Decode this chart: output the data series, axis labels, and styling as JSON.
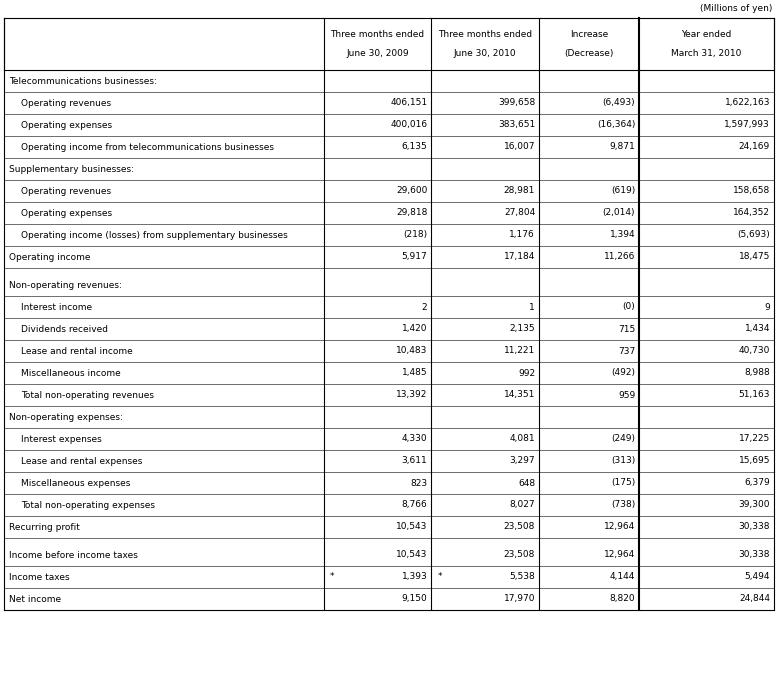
{
  "title_right": "(Millions of yen)",
  "col_headers": [
    "Three months ended\nJune 30, 2009",
    "Three months ended\nJune 30, 2010",
    "Increase\n(Decrease)",
    "Year ended\nMarch 31, 2010"
  ],
  "rows": [
    {
      "label": "Telecommunications businesses:",
      "indent": 0,
      "values": [
        "",
        "",
        "",
        ""
      ],
      "section_header": true
    },
    {
      "label": "Operating revenues",
      "indent": 1,
      "values": [
        "406,151",
        "399,658",
        "(6,493)",
        "1,622,163"
      ]
    },
    {
      "label": "Operating expenses",
      "indent": 1,
      "values": [
        "400,016",
        "383,651",
        "(16,364)",
        "1,597,993"
      ]
    },
    {
      "label": "Operating income from telecommunications businesses",
      "indent": 1,
      "values": [
        "6,135",
        "16,007",
        "9,871",
        "24,169"
      ]
    },
    {
      "label": "Supplementary businesses:",
      "indent": 0,
      "values": [
        "",
        "",
        "",
        ""
      ],
      "section_header": true
    },
    {
      "label": "Operating revenues",
      "indent": 1,
      "values": [
        "29,600",
        "28,981",
        "(619)",
        "158,658"
      ]
    },
    {
      "label": "Operating expenses",
      "indent": 1,
      "values": [
        "29,818",
        "27,804",
        "(2,014)",
        "164,352"
      ]
    },
    {
      "label": "Operating income (losses) from supplementary businesses",
      "indent": 1,
      "values": [
        "(218)",
        "1,176",
        "1,394",
        "(5,693)"
      ]
    },
    {
      "label": "Operating income",
      "indent": 0,
      "values": [
        "5,917",
        "17,184",
        "11,266",
        "18,475"
      ]
    },
    {
      "label": "",
      "indent": 0,
      "values": [
        "",
        "",
        "",
        ""
      ],
      "spacer": true
    },
    {
      "label": "Non-operating revenues:",
      "indent": 0,
      "values": [
        "",
        "",
        "",
        ""
      ],
      "section_header": true
    },
    {
      "label": "Interest income",
      "indent": 1,
      "values": [
        "2",
        "1",
        "(0)",
        "9"
      ]
    },
    {
      "label": "Dividends received",
      "indent": 1,
      "values": [
        "1,420",
        "2,135",
        "715",
        "1,434"
      ]
    },
    {
      "label": "Lease and rental income",
      "indent": 1,
      "values": [
        "10,483",
        "11,221",
        "737",
        "40,730"
      ]
    },
    {
      "label": "Miscellaneous income",
      "indent": 1,
      "values": [
        "1,485",
        "992",
        "(492)",
        "8,988"
      ]
    },
    {
      "label": "Total non-operating revenues",
      "indent": 1,
      "values": [
        "13,392",
        "14,351",
        "959",
        "51,163"
      ]
    },
    {
      "label": "Non-operating expenses:",
      "indent": 0,
      "values": [
        "",
        "",
        "",
        ""
      ],
      "section_header": true
    },
    {
      "label": "Interest expenses",
      "indent": 1,
      "values": [
        "4,330",
        "4,081",
        "(249)",
        "17,225"
      ]
    },
    {
      "label": "Lease and rental expenses",
      "indent": 1,
      "values": [
        "3,611",
        "3,297",
        "(313)",
        "15,695"
      ]
    },
    {
      "label": "Miscellaneous expenses",
      "indent": 1,
      "values": [
        "823",
        "648",
        "(175)",
        "6,379"
      ]
    },
    {
      "label": "Total non-operating expenses",
      "indent": 1,
      "values": [
        "8,766",
        "8,027",
        "(738)",
        "39,300"
      ]
    },
    {
      "label": "Recurring profit",
      "indent": 0,
      "values": [
        "10,543",
        "23,508",
        "12,964",
        "30,338"
      ]
    },
    {
      "label": "",
      "indent": 0,
      "values": [
        "",
        "",
        "",
        ""
      ],
      "spacer": true
    },
    {
      "label": "Income before income taxes",
      "indent": 0,
      "values": [
        "10,543",
        "23,508",
        "12,964",
        "30,338"
      ]
    },
    {
      "label": "Income taxes",
      "indent": 0,
      "values": [
        "1,393",
        "5,538",
        "4,144",
        "5,494"
      ],
      "star": [
        true,
        true,
        false,
        false
      ]
    },
    {
      "label": "Net income",
      "indent": 0,
      "values": [
        "9,150",
        "17,970",
        "8,820",
        "24,844"
      ]
    }
  ],
  "bg_color": "#ffffff",
  "line_color": "#000000",
  "text_color": "#000000",
  "font_size": 6.5,
  "header_font_size": 6.5,
  "title_font_size": 6.5
}
